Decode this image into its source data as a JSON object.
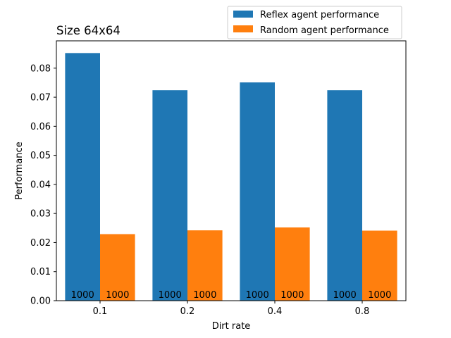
{
  "chart_data": {
    "type": "bar",
    "title": "Size 64x64",
    "xlabel": "Dirt rate",
    "ylabel": "Performance",
    "categories": [
      "0.1",
      "0.2",
      "0.4",
      "0.8"
    ],
    "series": [
      {
        "name": "Reflex agent performance",
        "color": "#1f77b4",
        "values": [
          0.0852,
          0.0724,
          0.0751,
          0.0724
        ],
        "annotations": [
          "1000",
          "1000",
          "1000",
          "1000"
        ]
      },
      {
        "name": "Random agent performance",
        "color": "#ff7f0e",
        "values": [
          0.0229,
          0.0242,
          0.0252,
          0.0241
        ],
        "annotations": [
          "1000",
          "1000",
          "1000",
          "1000"
        ]
      }
    ],
    "ylim": [
      0,
      0.0894
    ],
    "yticks": [
      "0.00",
      "0.01",
      "0.02",
      "0.03",
      "0.04",
      "0.05",
      "0.06",
      "0.07",
      "0.08"
    ],
    "grid": false,
    "legend_position": "upper-right, above axes"
  }
}
